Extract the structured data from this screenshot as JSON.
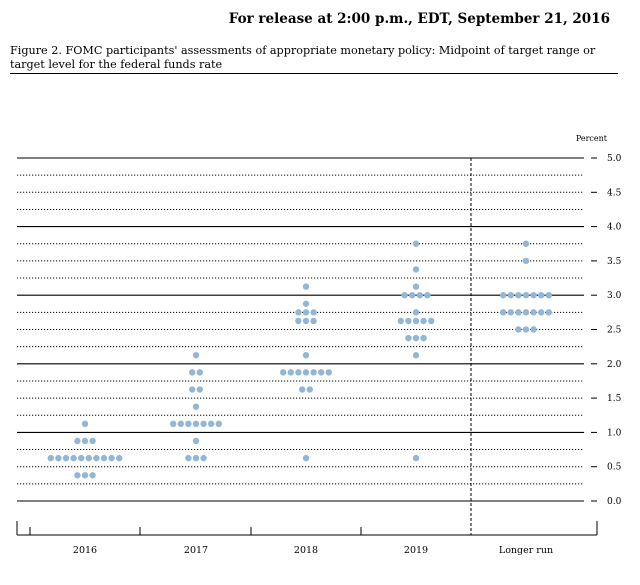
{
  "header": {
    "release": "For release at 2:00 p.m., EDT, September 21, 2016"
  },
  "figure": {
    "caption": "Figure 2. FOMC participants' assessments of appropriate monetary policy: Midpoint of target range or target level for the federal funds rate"
  },
  "chart_data": {
    "type": "scatter",
    "ylabel": "Percent",
    "ylim": [
      0,
      5
    ],
    "y_ticks": [
      "5.0",
      "4.5",
      "4.0",
      "3.5",
      "3.0",
      "2.5",
      "2.0",
      "1.5",
      "1.0",
      "0.5",
      "0.0"
    ],
    "categories": [
      "2016",
      "2017",
      "2018",
      "2019",
      "Longer run"
    ],
    "dot_color": "#94b6d6",
    "grid": "dotted at 0.25 steps, solid at whole numbers",
    "dots": [
      {
        "category": "2016",
        "rows": [
          {
            "y": 1.125,
            "count": 1
          },
          {
            "y": 0.875,
            "count": 3
          },
          {
            "y": 0.625,
            "count": 10
          },
          {
            "y": 0.375,
            "count": 3
          }
        ]
      },
      {
        "category": "2017",
        "rows": [
          {
            "y": 2.125,
            "count": 1
          },
          {
            "y": 1.875,
            "count": 2
          },
          {
            "y": 1.625,
            "count": 2
          },
          {
            "y": 1.375,
            "count": 1
          },
          {
            "y": 1.125,
            "count": 7
          },
          {
            "y": 0.875,
            "count": 1
          },
          {
            "y": 0.625,
            "count": 3
          }
        ]
      },
      {
        "category": "2018",
        "rows": [
          {
            "y": 3.125,
            "count": 1
          },
          {
            "y": 2.875,
            "count": 1
          },
          {
            "y": 2.75,
            "count": 3
          },
          {
            "y": 2.625,
            "count": 3
          },
          {
            "y": 2.125,
            "count": 1
          },
          {
            "y": 1.875,
            "count": 7
          },
          {
            "y": 1.625,
            "count": 2
          },
          {
            "y": 0.625,
            "count": 1
          }
        ]
      },
      {
        "category": "2019",
        "rows": [
          {
            "y": 3.75,
            "count": 1
          },
          {
            "y": 3.375,
            "count": 1
          },
          {
            "y": 3.125,
            "count": 1
          },
          {
            "y": 3.0,
            "count": 4
          },
          {
            "y": 2.75,
            "count": 1
          },
          {
            "y": 2.625,
            "count": 5
          },
          {
            "y": 2.375,
            "count": 3
          },
          {
            "y": 2.125,
            "count": 1
          },
          {
            "y": 0.625,
            "count": 1
          }
        ]
      },
      {
        "category": "Longer run",
        "rows": [
          {
            "y": 3.75,
            "count": 1
          },
          {
            "y": 3.5,
            "count": 1
          },
          {
            "y": 3.0,
            "count": 7
          },
          {
            "y": 2.75,
            "count": 7
          },
          {
            "y": 2.5,
            "count": 3
          }
        ]
      }
    ]
  }
}
